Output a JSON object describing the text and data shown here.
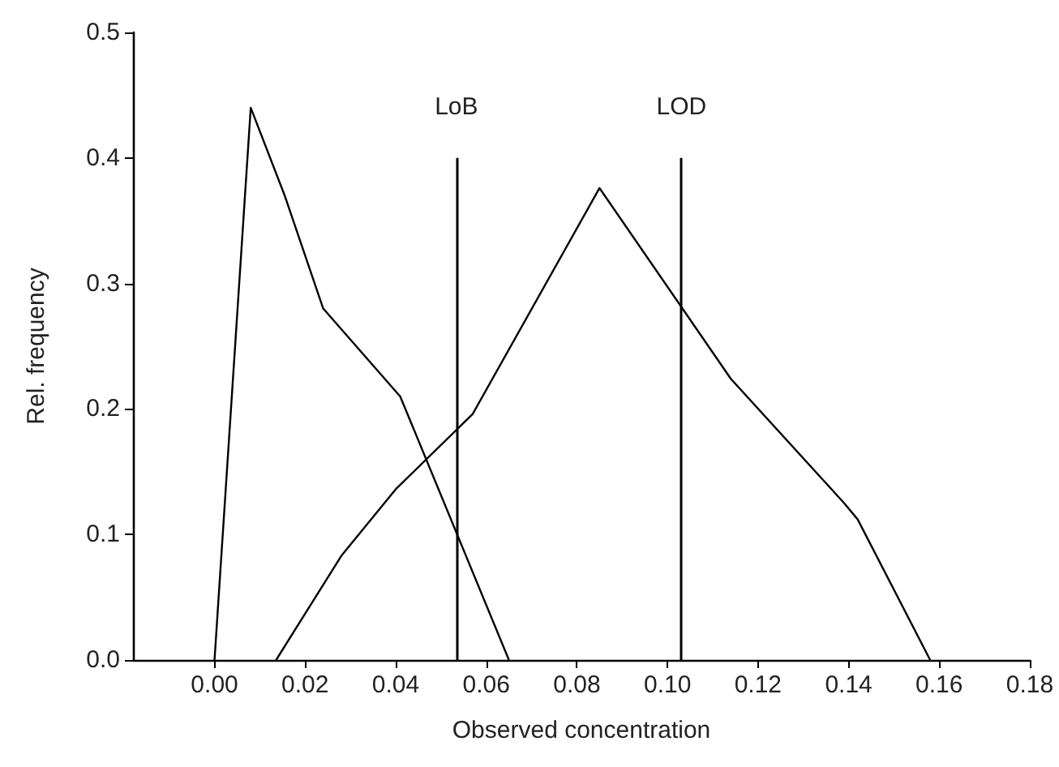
{
  "chart_data": {
    "type": "line",
    "xlabel": "Observed concentration",
    "ylabel": "Rel. frequency",
    "xlim": [
      -0.018,
      0.18
    ],
    "xticks": [
      {
        "value": 0,
        "label": "0.00"
      },
      {
        "value": 0.02,
        "label": "0.02"
      },
      {
        "value": 0.04,
        "label": "0.04"
      },
      {
        "value": 0.06,
        "label": "0.06"
      },
      {
        "value": 0.08,
        "label": "0.08"
      },
      {
        "value": 0.1,
        "label": "0.10"
      },
      {
        "value": 0.12,
        "label": "0.12"
      },
      {
        "value": 0.14,
        "label": "0.14"
      },
      {
        "value": 0.16,
        "label": "0.16"
      },
      {
        "value": 0.18,
        "label": "0.18"
      }
    ],
    "ylim": [
      0,
      0.5
    ],
    "yticks": [
      {
        "value": 0,
        "label": "0.0"
      },
      {
        "value": 0.1,
        "label": "0.1"
      },
      {
        "value": 0.2,
        "label": "0.2"
      },
      {
        "value": 0.3,
        "label": "0.3"
      },
      {
        "value": 0.4,
        "label": "0.4"
      },
      {
        "value": 0.5,
        "label": "0.5"
      }
    ],
    "series": [
      {
        "color": "#000000",
        "x": [
          0,
          0.008,
          0.0155,
          0.024,
          0.041,
          0.065
        ],
        "values": [
          0,
          0.44,
          0.37,
          0.28,
          0.21,
          0
        ]
      },
      {
        "color": "#000000",
        "x": [
          0.0136,
          0.028,
          0.04,
          0.057,
          0.085,
          0.114,
          0.139,
          0.142,
          0.158
        ],
        "values": [
          0,
          0.083,
          0.136,
          0.196,
          0.376,
          0.224,
          0.125,
          0.112,
          0
        ]
      }
    ],
    "ref_lines": [
      {
        "axis": "x",
        "value": 0.0534,
        "label": "LoB",
        "color": "#000000"
      },
      {
        "axis": "x",
        "value": 0.1031,
        "label": "LOD",
        "color": "#000000"
      }
    ],
    "grid": false,
    "marker": "none",
    "line_style": "solid"
  }
}
